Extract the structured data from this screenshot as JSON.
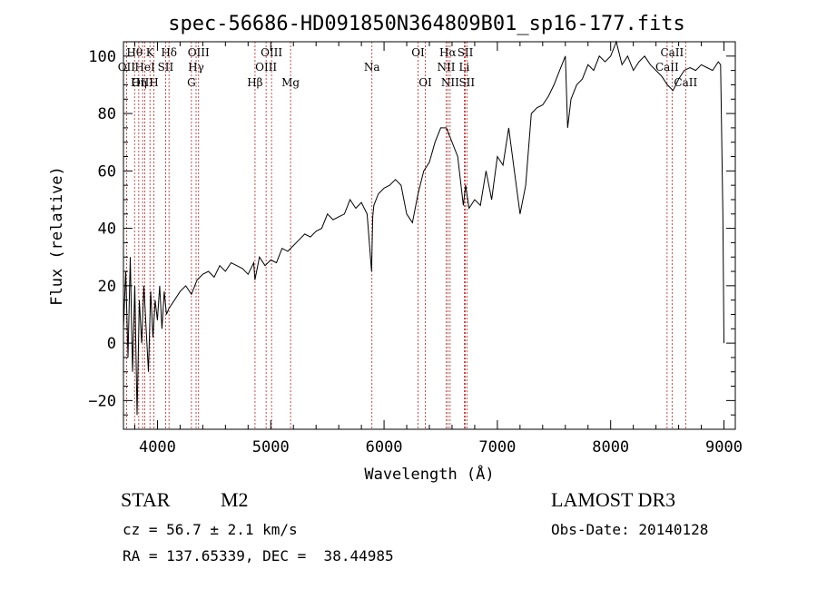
{
  "chart_data": {
    "type": "line",
    "title": "spec-56686-HD091850N364809B01_sp16-177.fits",
    "xlabel": "Wavelength (Å)",
    "ylabel": "Flux (relative)",
    "xlim": [
      3700,
      9100
    ],
    "ylim": [
      -30,
      105
    ],
    "xticks": [
      4000,
      5000,
      6000,
      7000,
      8000,
      9000
    ],
    "yticks": [
      -20,
      0,
      20,
      40,
      60,
      80,
      100
    ],
    "series": [
      {
        "name": "flux",
        "x": [
          3700,
          3720,
          3740,
          3760,
          3780,
          3800,
          3820,
          3840,
          3860,
          3880,
          3900,
          3920,
          3940,
          3960,
          3980,
          4000,
          4020,
          4040,
          4060,
          4080,
          4100,
          4150,
          4200,
          4250,
          4300,
          4350,
          4400,
          4450,
          4500,
          4550,
          4600,
          4650,
          4700,
          4750,
          4800,
          4850,
          4860,
          4900,
          4950,
          5000,
          5050,
          5100,
          5150,
          5200,
          5250,
          5300,
          5350,
          5400,
          5450,
          5500,
          5550,
          5600,
          5650,
          5700,
          5750,
          5800,
          5850,
          5890,
          5900,
          5910,
          5950,
          6000,
          6050,
          6100,
          6150,
          6200,
          6250,
          6300,
          6350,
          6400,
          6450,
          6500,
          6550,
          6580,
          6600,
          6650,
          6700,
          6720,
          6750,
          6800,
          6850,
          6900,
          6950,
          7000,
          7050,
          7100,
          7150,
          7200,
          7250,
          7300,
          7350,
          7400,
          7450,
          7500,
          7550,
          7600,
          7620,
          7650,
          7700,
          7750,
          7800,
          7850,
          7900,
          7950,
          8000,
          8050,
          8100,
          8150,
          8200,
          8250,
          8300,
          8350,
          8400,
          8450,
          8500,
          8550,
          8600,
          8650,
          8700,
          8750,
          8800,
          8850,
          8900,
          8950,
          8970,
          8990,
          9000
        ],
        "values": [
          5,
          25,
          -5,
          30,
          -10,
          20,
          -25,
          15,
          0,
          20,
          5,
          -10,
          18,
          2,
          15,
          8,
          20,
          5,
          18,
          10,
          12,
          15,
          18,
          20,
          17,
          22,
          24,
          25,
          23,
          27,
          25,
          28,
          27,
          26,
          24,
          28,
          22,
          30,
          27,
          29,
          28,
          33,
          32,
          34,
          36,
          38,
          37,
          39,
          40,
          45,
          43,
          44,
          45,
          50,
          47,
          49,
          45,
          25,
          44,
          48,
          52,
          54,
          55,
          57,
          55,
          45,
          42,
          52,
          60,
          63,
          70,
          75,
          75,
          72,
          70,
          65,
          48,
          55,
          47,
          50,
          48,
          60,
          50,
          65,
          62,
          75,
          60,
          45,
          55,
          80,
          82,
          83,
          86,
          90,
          95,
          100,
          75,
          85,
          90,
          92,
          97,
          95,
          100,
          98,
          100,
          105,
          97,
          100,
          95,
          98,
          100,
          97,
          95,
          93,
          90,
          88,
          92,
          95,
          96,
          95,
          97,
          96,
          95,
          98,
          97,
          45,
          0
        ]
      }
    ],
    "lines_top": [
      {
        "label": "Hθ",
        "x": 3798
      },
      {
        "label": "K",
        "x": 3934
      },
      {
        "label": "Hδ",
        "x": 4102
      },
      {
        "label": "OIII",
        "x": 4363
      },
      {
        "label": "OIII",
        "x": 5007
      },
      {
        "label": "OI",
        "x": 6300
      },
      {
        "label": "Hα",
        "x": 6563
      },
      {
        "label": "SII",
        "x": 6717
      },
      {
        "label": "CaII",
        "x": 8542
      }
    ],
    "lines_mid": [
      {
        "label": "OII",
        "x": 3727
      },
      {
        "label": "HeI",
        "x": 3889
      },
      {
        "label": "SII",
        "x": 4072
      },
      {
        "label": "Hγ",
        "x": 4341
      },
      {
        "label": "OIII",
        "x": 4959
      },
      {
        "label": "Na",
        "x": 5893
      },
      {
        "label": "NII",
        "x": 6548
      },
      {
        "label": "Li",
        "x": 6708
      },
      {
        "label": "CaII",
        "x": 8498
      }
    ],
    "lines_low": [
      {
        "label": "OIII",
        "x": 3869
      },
      {
        "label": "Hη",
        "x": 3835
      },
      {
        "label": "H",
        "x": 3968
      },
      {
        "label": "G",
        "x": 4300
      },
      {
        "label": "Hβ",
        "x": 4861
      },
      {
        "label": "Mg",
        "x": 5175
      },
      {
        "label": "OI",
        "x": 6364
      },
      {
        "label": "NII",
        "x": 6583
      },
      {
        "label": "SII",
        "x": 6731
      },
      {
        "label": "CaII",
        "x": 8662
      }
    ]
  },
  "info": {
    "star_type": "STAR",
    "subclass": "M2",
    "cz": "cz = 56.7 ± 2.1 km/s",
    "coords": "RA = 137.65339, DEC =  38.44985",
    "survey": "LAMOST DR3",
    "obs_date": "Obs-Date: 20140128"
  }
}
